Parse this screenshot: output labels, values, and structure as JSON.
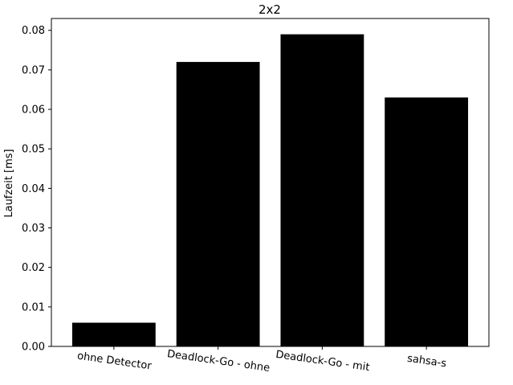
{
  "chart_data": {
    "type": "bar",
    "title": "2x2",
    "xlabel": "",
    "ylabel": "Laufzeit [ms]",
    "categories": [
      "ohne Detector",
      "Deadlock-Go - ohne",
      "Deadlock-Go - mit",
      "sahsa-s"
    ],
    "values": [
      0.006,
      0.072,
      0.079,
      0.063
    ],
    "ylim": [
      0,
      0.083
    ],
    "yticks": [
      "0.00",
      "0.01",
      "0.02",
      "0.03",
      "0.04",
      "0.05",
      "0.06",
      "0.07",
      "0.08"
    ],
    "grid": false,
    "bar_color": "#000000",
    "xtick_rotation_deg": -8
  }
}
